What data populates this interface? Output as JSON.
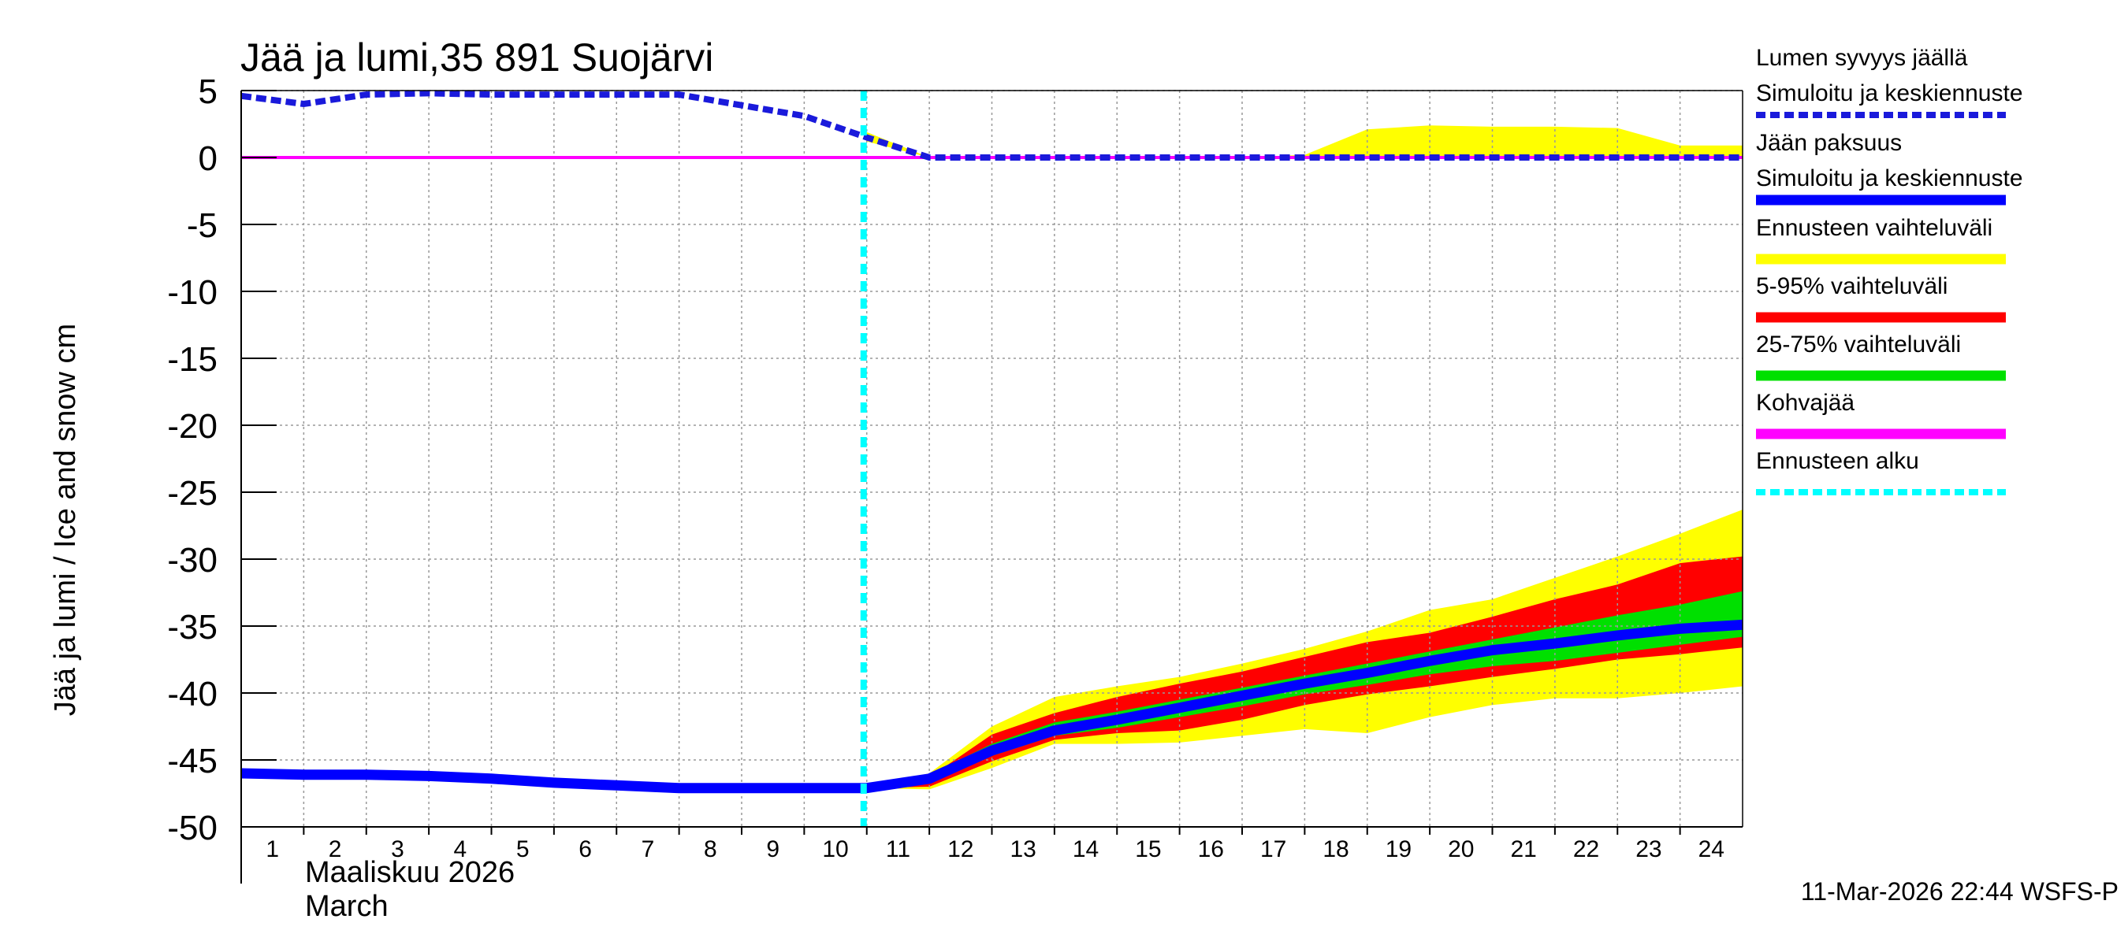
{
  "chart_data": {
    "type": "area",
    "title": "Jää ja lumi,35 891 Suojärvi",
    "ylabel": "Jää ja lumi / Ice and snow    cm",
    "ylim": [
      -50,
      5
    ],
    "yticks": [
      5,
      0,
      -5,
      -10,
      -15,
      -20,
      -25,
      -30,
      -35,
      -40,
      -45,
      -50
    ],
    "xlim": [
      1,
      25
    ],
    "x_ticks": [
      1,
      2,
      3,
      4,
      5,
      6,
      7,
      8,
      9,
      10,
      11,
      12,
      13,
      14,
      15,
      16,
      17,
      18,
      19,
      20,
      21,
      22,
      23,
      24
    ],
    "x_month_label": "Maaliskuu 2026",
    "x_month_label_en": "March",
    "forecast_start_day": 10.95,
    "grid": true,
    "colors": {
      "snow": "#1a1adb",
      "ice": "#0000ff",
      "forecast_range": "#ffff00",
      "range_5_95": "#ff0000",
      "range_25_75": "#00e000",
      "slush_ice": "#ff00ff",
      "forecast_start": "#00ffff"
    },
    "series": [
      {
        "name": "Lumen syvyys jäällä – Simuloitu ja keskiennuste",
        "style": "dashed",
        "x": [
          1,
          2,
          3,
          4,
          5,
          6,
          7,
          8,
          9,
          10,
          11,
          12,
          13,
          14,
          15,
          16,
          17,
          18,
          19,
          20,
          21,
          22,
          23,
          24,
          25
        ],
        "values": [
          4.6,
          4.0,
          4.7,
          4.8,
          4.7,
          4.7,
          4.7,
          4.7,
          3.9,
          3.1,
          1.5,
          0.0,
          0.0,
          0.0,
          0.0,
          0.0,
          0.0,
          0.0,
          0.0,
          0.0,
          0.0,
          0.0,
          0.0,
          0.0,
          0.0
        ]
      },
      {
        "name": "Jään paksuus – Simuloitu ja keskiennuste",
        "style": "solid",
        "x": [
          1,
          2,
          3,
          4,
          5,
          6,
          7,
          8,
          9,
          10,
          11,
          12,
          13,
          14,
          15,
          16,
          17,
          18,
          19,
          20,
          21,
          22,
          23,
          24,
          25
        ],
        "values": [
          -46.0,
          -46.1,
          -46.1,
          -46.2,
          -46.4,
          -46.7,
          -46.9,
          -47.1,
          -47.1,
          -47.1,
          -47.1,
          -46.4,
          -44.3,
          -42.8,
          -42.0,
          -41.1,
          -40.2,
          -39.3,
          -38.5,
          -37.6,
          -36.8,
          -36.3,
          -35.7,
          -35.2,
          -34.9
        ]
      },
      {
        "name": "Kohvajää",
        "style": "solid",
        "x": [
          1,
          25
        ],
        "values": [
          0.0,
          0.0
        ]
      }
    ],
    "bands": [
      {
        "name": "Ennusteen vaihteluväli (lumi)",
        "x": [
          11,
          12,
          13,
          14,
          15,
          16,
          17,
          18,
          19,
          20,
          21,
          22,
          23,
          24,
          25
        ],
        "low": [
          1.2,
          0.0,
          0.0,
          0.0,
          0.0,
          0.0,
          0.0,
          0.0,
          0.0,
          0.0,
          0.0,
          0.0,
          0.0,
          0.0,
          0.0
        ],
        "high": [
          1.9,
          0.0,
          0.0,
          0.0,
          0.0,
          0.0,
          0.0,
          0.2,
          2.1,
          2.4,
          2.3,
          2.3,
          2.2,
          0.9,
          0.9
        ]
      },
      {
        "name": "Ennusteen vaihteluväli",
        "x": [
          11,
          12,
          13,
          14,
          15,
          16,
          17,
          18,
          19,
          20,
          21,
          22,
          23,
          24,
          25
        ],
        "low": [
          -47.1,
          -47.2,
          -45.6,
          -43.8,
          -43.8,
          -43.7,
          -43.2,
          -42.7,
          -43.0,
          -41.8,
          -40.9,
          -40.4,
          -40.4,
          -40.0,
          -39.5
        ],
        "high": [
          -47.1,
          -46.0,
          -42.5,
          -40.3,
          -39.5,
          -38.8,
          -37.8,
          -36.7,
          -35.4,
          -33.8,
          -33.0,
          -31.4,
          -29.8,
          -28.1,
          -26.3
        ]
      },
      {
        "name": "5-95% vaihteluväli",
        "x": [
          11,
          12,
          13,
          14,
          15,
          16,
          17,
          18,
          19,
          20,
          21,
          22,
          23,
          24,
          25
        ],
        "low": [
          -47.1,
          -47.0,
          -45.1,
          -43.5,
          -43.0,
          -42.8,
          -42.0,
          -40.9,
          -40.1,
          -39.5,
          -38.8,
          -38.2,
          -37.5,
          -37.1,
          -36.6
        ],
        "high": [
          -47.1,
          -46.3,
          -43.1,
          -41.5,
          -40.3,
          -39.3,
          -38.4,
          -37.3,
          -36.2,
          -35.5,
          -34.3,
          -33.0,
          -31.9,
          -30.3,
          -29.8
        ]
      },
      {
        "name": "25-75% vaihteluväli",
        "x": [
          11,
          12,
          13,
          14,
          15,
          16,
          17,
          18,
          19,
          20,
          21,
          22,
          23,
          24,
          25
        ],
        "low": [
          -47.1,
          -46.7,
          -44.7,
          -43.2,
          -42.6,
          -41.8,
          -41.0,
          -40.1,
          -39.4,
          -38.6,
          -38.0,
          -37.6,
          -37.0,
          -36.4,
          -35.8
        ],
        "high": [
          -47.1,
          -46.1,
          -43.8,
          -42.2,
          -41.4,
          -40.5,
          -39.6,
          -38.7,
          -37.8,
          -36.9,
          -36.0,
          -35.1,
          -34.2,
          -33.4,
          -32.4
        ]
      }
    ],
    "legend": [
      {
        "line1": "Lumen syvyys jäällä",
        "line2": "Simuloitu ja keskiennuste",
        "color": "#1a1adb",
        "style": "dashed"
      },
      {
        "line1": "Jään paksuus",
        "line2": "Simuloitu ja keskiennuste",
        "color": "#0000ff",
        "style": "solid"
      },
      {
        "line1": "Ennusteen vaihteluväli",
        "line2": "",
        "color": "#ffff00",
        "style": "solid"
      },
      {
        "line1": "5-95% vaihteluväli",
        "line2": "",
        "color": "#ff0000",
        "style": "solid"
      },
      {
        "line1": "25-75% vaihteluväli",
        "line2": "",
        "color": "#00e000",
        "style": "solid"
      },
      {
        "line1": "Kohvajää",
        "line2": "",
        "color": "#ff00ff",
        "style": "solid"
      },
      {
        "line1": "Ennusteen alku",
        "line2": "",
        "color": "#00ffff",
        "style": "dashed"
      }
    ],
    "footer": "11-Mar-2026 22:44 WSFS-P"
  }
}
